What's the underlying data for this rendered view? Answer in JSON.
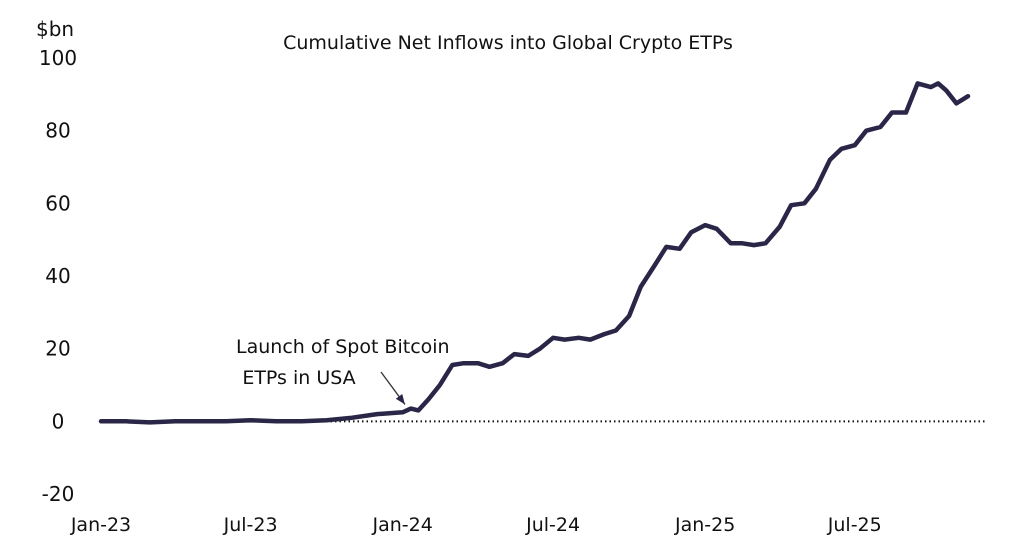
{
  "chart_data": {
    "type": "line",
    "title": "Cumulative Net Inflows into Global Crypto ETPs",
    "ylabel": "$bn",
    "xlabel": "",
    "ylim": [
      -20,
      100
    ],
    "y_ticks": [
      "100",
      "80",
      "60",
      "40",
      "20",
      "0",
      "-20"
    ],
    "y_tick_values": [
      100,
      80,
      60,
      40,
      20,
      0,
      -20
    ],
    "x_ticks": [
      "Jan-23",
      "Jul-23",
      "Jan-24",
      "Jul-24",
      "Jan-25",
      "Jul-25"
    ],
    "x_tick_dates": [
      "2023-01-01",
      "2023-07-01",
      "2024-01-01",
      "2024-07-01",
      "2025-01-01",
      "2025-07-01"
    ],
    "x_range": [
      "2023-01-01",
      "2025-11-15"
    ],
    "grid": false,
    "colors": {
      "line": "#2a2647",
      "zero_line": "#111111"
    },
    "annotation": {
      "lines": [
        "Launch of Spot Bitcoin",
        "ETPs in USA"
      ],
      "target_date": "2024-01-11",
      "target_value": 3
    },
    "series": [
      {
        "x": [
          "2023-01-01",
          "2023-02-01",
          "2023-03-01",
          "2023-04-01",
          "2023-05-01",
          "2023-06-01",
          "2023-07-01",
          "2023-08-01",
          "2023-09-01",
          "2023-10-01",
          "2023-11-01",
          "2023-12-01",
          "2024-01-01",
          "2024-01-11",
          "2024-01-20",
          "2024-02-01",
          "2024-02-15",
          "2024-03-01",
          "2024-03-15",
          "2024-04-01",
          "2024-04-15",
          "2024-05-01",
          "2024-05-15",
          "2024-06-01",
          "2024-06-15",
          "2024-07-01",
          "2024-07-15",
          "2024-08-01",
          "2024-08-15",
          "2024-09-01",
          "2024-09-15",
          "2024-10-01",
          "2024-10-15",
          "2024-11-01",
          "2024-11-15",
          "2024-12-01",
          "2024-12-15",
          "2025-01-01",
          "2025-01-15",
          "2025-02-01",
          "2025-02-15",
          "2025-03-01",
          "2025-03-15",
          "2025-04-01",
          "2025-04-15",
          "2025-05-01",
          "2025-05-15",
          "2025-06-01",
          "2025-06-15",
          "2025-07-01",
          "2025-07-15",
          "2025-08-01",
          "2025-08-15",
          "2025-09-01",
          "2025-09-15",
          "2025-10-01",
          "2025-10-10",
          "2025-10-20",
          "2025-11-01",
          "2025-11-15"
        ],
        "values": [
          0,
          0,
          -0.3,
          0,
          0,
          0,
          0.3,
          0,
          0,
          0.3,
          1,
          2,
          2.5,
          3.5,
          3,
          6,
          10,
          15.5,
          16,
          16,
          15,
          16,
          18.5,
          18,
          20,
          23,
          22.5,
          23,
          22.5,
          24,
          25,
          29,
          37,
          43,
          48,
          47.5,
          52,
          54,
          53,
          49,
          49,
          48.5,
          49,
          53.5,
          59.5,
          60,
          64,
          72,
          75,
          76,
          80,
          81,
          85,
          85,
          93,
          92,
          93,
          91,
          87.5,
          89.5
        ]
      }
    ]
  }
}
